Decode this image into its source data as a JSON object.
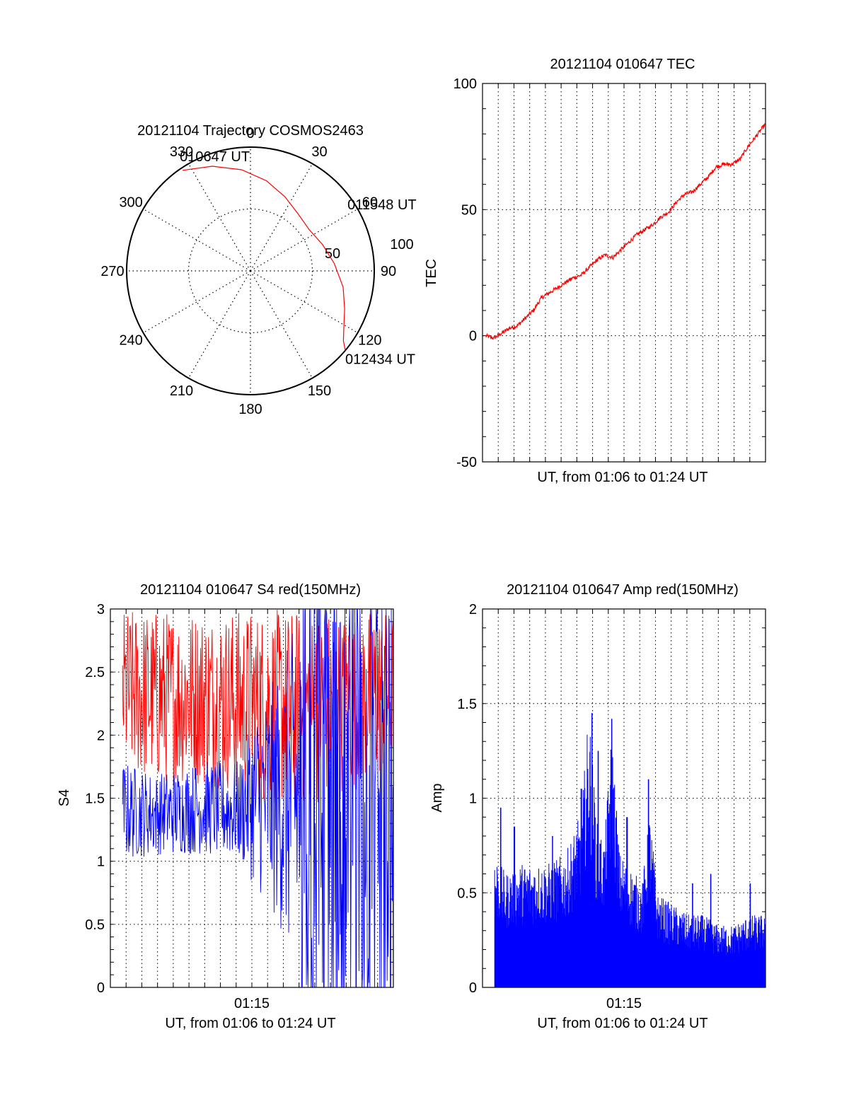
{
  "colors": {
    "red": "#ff0000",
    "blue": "#0000ff",
    "axis": "#000000",
    "grid": "#000000"
  },
  "chart_data": [
    {
      "id": "trajectory",
      "type": "polar",
      "title": "20121104 Trajectory COSMOS2463",
      "angle_labels": [
        "0",
        "30",
        "60",
        "90",
        "120",
        "150",
        "180",
        "210",
        "240",
        "270",
        "300",
        "330"
      ],
      "radial_labels": [
        "50",
        "100"
      ],
      "rlim": [
        0,
        100
      ],
      "grid": true,
      "series": [
        {
          "color": "red",
          "points": [
            [
              326,
              98
            ],
            [
              340,
              90
            ],
            [
              355,
              82
            ],
            [
              10,
              74
            ],
            [
              25,
              66
            ],
            [
              40,
              60
            ],
            [
              55,
              58
            ],
            [
              70,
              62
            ],
            [
              85,
              68
            ],
            [
              100,
              76
            ],
            [
              112,
              82
            ],
            [
              121,
              88
            ],
            [
              127,
              94
            ],
            [
              130,
              100
            ]
          ]
        }
      ],
      "annotations": [
        {
          "text": "010647 UT",
          "angle": 326,
          "r": 98
        },
        {
          "text": "011548 UT",
          "angle": 55,
          "r": 58
        },
        {
          "text": "012434 UT",
          "angle": 130,
          "r": 100
        }
      ]
    },
    {
      "id": "tec",
      "type": "line",
      "title": "20121104 010647 TEC",
      "ylabel": "TEC",
      "xlabel": "UT, from 01:06 to 01:24 UT",
      "ylim": [
        -50,
        100
      ],
      "yticks": [
        "100",
        "50",
        "0",
        "-50"
      ],
      "xrange_min": [
        6.8,
        24.6
      ],
      "grid": true,
      "series": [
        {
          "color": "red",
          "x": [
            7.0,
            7.5,
            8.0,
            8.5,
            9.0,
            9.5,
            10.0,
            10.5,
            11.0,
            11.5,
            12.0,
            12.5,
            13.0,
            13.5,
            14.0,
            14.5,
            15.0,
            15.5,
            16.0,
            16.5,
            17.0,
            17.5,
            18.0,
            18.5,
            19.0,
            19.5,
            20.0,
            20.5,
            21.0,
            21.5,
            22.0,
            22.5,
            23.0,
            23.5,
            24.0,
            24.6
          ],
          "y": [
            0,
            -1,
            1,
            3,
            4,
            7,
            10,
            15,
            17,
            19,
            21,
            23,
            24,
            27,
            30,
            32,
            31,
            34,
            37,
            40,
            42,
            44,
            47,
            49,
            53,
            56,
            57,
            60,
            63,
            67,
            68,
            68,
            70,
            75,
            79,
            84
          ]
        }
      ]
    },
    {
      "id": "s4",
      "type": "line",
      "title": "20121104 010647 S4 red(150MHz)",
      "ylabel": "S4",
      "xlabel": "UT, from 01:06 to 01:24 UT",
      "xtick": "01:15",
      "ylim": [
        0,
        3
      ],
      "yticks": [
        "0",
        "0.5",
        "1",
        "1.5",
        "2",
        "2.5",
        "3"
      ],
      "xrange_min": [
        6.0,
        24.6
      ],
      "grid": true,
      "series": [
        {
          "color": "red",
          "band": [
            [
              6.8,
              1.7,
              3.0
            ],
            [
              9.0,
              1.6,
              3.0
            ],
            [
              12.0,
              1.6,
              3.0
            ],
            [
              15.0,
              1.5,
              3.0
            ],
            [
              18.0,
              1.4,
              3.0
            ],
            [
              21.0,
              1.5,
              3.0
            ],
            [
              24.6,
              1.7,
              3.0
            ]
          ]
        },
        {
          "color": "blue",
          "band": [
            [
              6.8,
              1.0,
              1.8
            ],
            [
              9.0,
              1.05,
              1.7
            ],
            [
              12.0,
              1.05,
              1.8
            ],
            [
              14.5,
              1.0,
              1.8
            ],
            [
              15.5,
              0.8,
              2.2
            ],
            [
              17.0,
              0.5,
              2.5
            ],
            [
              18.5,
              0.0,
              3.0
            ],
            [
              24.6,
              0.0,
              3.0
            ]
          ]
        }
      ]
    },
    {
      "id": "amp",
      "type": "bar",
      "title": "20121104 010647 Amp red(150MHz)",
      "ylabel": "Amp",
      "xlabel": "UT, from 01:06 to 01:24 UT",
      "xtick": "01:15",
      "ylim": [
        0,
        2
      ],
      "yticks": [
        "0",
        "0.5",
        "1",
        "1.5",
        "2"
      ],
      "xrange_min": [
        6.0,
        24.6
      ],
      "grid": true,
      "series": [
        {
          "color": "blue",
          "envelope_x": [
            6.8,
            7.5,
            8.5,
            9.5,
            10.5,
            11.5,
            12.0,
            12.5,
            13.0,
            13.5,
            14.0,
            14.5,
            15.0,
            15.5,
            16.0,
            16.5,
            17.0,
            17.5,
            18.5,
            19.5,
            20.5,
            21.5,
            22.5,
            23.5,
            24.6
          ],
          "envelope_y": [
            0.65,
            0.55,
            0.6,
            0.6,
            0.6,
            0.65,
            0.75,
            0.85,
            1.35,
            0.8,
            0.7,
            1.25,
            0.65,
            0.6,
            0.55,
            0.5,
            0.85,
            0.45,
            0.4,
            0.35,
            0.35,
            0.3,
            0.3,
            0.35,
            0.35
          ],
          "peaks": [
            [
              7.2,
              0.95
            ],
            [
              8.1,
              0.85
            ],
            [
              10.6,
              0.8
            ],
            [
              12.5,
              1.05
            ],
            [
              13.2,
              1.45
            ],
            [
              13.6,
              1.25
            ],
            [
              14.5,
              1.42
            ],
            [
              15.5,
              0.9
            ],
            [
              16.9,
              1.1
            ],
            [
              19.8,
              0.55
            ],
            [
              21.0,
              0.6
            ],
            [
              23.6,
              0.55
            ]
          ]
        }
      ]
    }
  ]
}
